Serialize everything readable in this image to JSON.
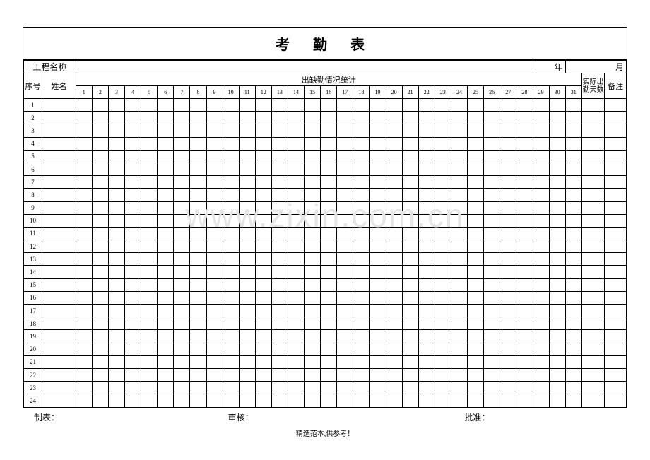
{
  "title": "考 勤 表",
  "project_label": "工程名称",
  "year_label": "年",
  "month_label": "月",
  "header": {
    "seq": "序号",
    "name": "姓名",
    "attendance_group": "出缺勤情况统计",
    "actual_days": "实际出勤天数",
    "remark": "备注",
    "days": [
      "1",
      "2",
      "3",
      "4",
      "5",
      "6",
      "7",
      "8",
      "9",
      "10",
      "11",
      "12",
      "13",
      "14",
      "15",
      "16",
      "17",
      "18",
      "19",
      "20",
      "21",
      "22",
      "23",
      "24",
      "25",
      "26",
      "27",
      "28",
      "29",
      "30",
      "31"
    ]
  },
  "row_count": 24,
  "footer": {
    "maker": "制表：",
    "reviewer": "审核：",
    "approver": "批准："
  },
  "note": "精选范本,供参考！",
  "watermark": "www.zixin.com.cn",
  "colors": {
    "border": "#000000",
    "background": "#ffffff",
    "watermark": "#e6e6e6"
  },
  "fonts": {
    "title_size": 20,
    "header_size": 11,
    "day_size": 8,
    "body_size": 9,
    "footer_size": 12
  }
}
